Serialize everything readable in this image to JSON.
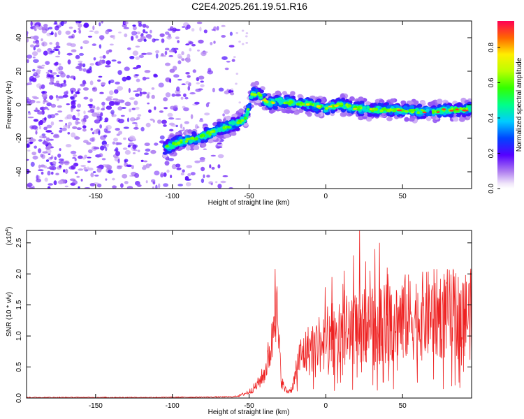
{
  "title": "C2E4.2025.261.19.51.R16",
  "chart_data": [
    {
      "type": "heatmap",
      "name": "spectrogram",
      "xlabel": "Height of straight line (km)",
      "ylabel": "Frequency (Hz)",
      "xlim": [
        -195,
        95
      ],
      "ylim": [
        -50,
        50
      ],
      "xticks": [
        -150,
        -100,
        -50,
        0,
        50
      ],
      "yticks": [
        -40,
        -20,
        0,
        20,
        40
      ],
      "colorbar": {
        "label": "Normalized spectral amplitude",
        "range": [
          0,
          0.95
        ],
        "ticks": [
          "0.0",
          "0.2",
          "0.4",
          "0.6",
          "0.8"
        ]
      },
      "ridge": {
        "x": [
          -105,
          -95,
          -85,
          -75,
          -65,
          -58,
          -52,
          -48,
          -45,
          -42,
          -38,
          -30,
          -20,
          -10,
          0,
          10,
          20,
          30,
          40,
          50,
          60,
          70,
          80,
          90,
          95
        ],
        "y": [
          -26,
          -22,
          -20,
          -17,
          -13,
          -11,
          -8,
          6,
          7,
          5,
          1,
          2,
          1,
          0,
          -2,
          0,
          -2,
          -3,
          -3,
          -3,
          -4,
          -4,
          -3,
          -3,
          -2
        ]
      }
    },
    {
      "type": "line",
      "name": "snr",
      "xlabel": "Height of straight line (km)",
      "ylabel": "SNR (10 * v/v)",
      "multiplier": "(x10",
      "multiplier_exp": "4",
      "xlim": [
        -195,
        95
      ],
      "ylim": [
        0,
        2.7
      ],
      "xticks": [
        -150,
        -100,
        -50,
        0,
        50
      ],
      "yticks": [
        "0.0",
        "0.5",
        "1.0",
        "1.5",
        "2.0",
        "2.5"
      ],
      "color": "#ee2222",
      "envelope": {
        "x": [
          -195,
          -120,
          -80,
          -60,
          -55,
          -50,
          -45,
          -40,
          -35,
          -33,
          -31,
          -29,
          -27,
          -25,
          -22,
          -20,
          -18,
          -15,
          -10,
          -5,
          0,
          5,
          10,
          15,
          20,
          22,
          25,
          30,
          35,
          40,
          45,
          50,
          60,
          70,
          80,
          90,
          95
        ],
        "y": [
          0.01,
          0.01,
          0.015,
          0.02,
          0.05,
          0.1,
          0.2,
          0.4,
          0.9,
          1.8,
          1.0,
          0.3,
          0.15,
          0.1,
          0.15,
          0.35,
          0.6,
          0.7,
          0.8,
          0.9,
          0.95,
          1.0,
          1.05,
          1.1,
          1.1,
          1.15,
          1.15,
          1.15,
          1.2,
          1.2,
          1.25,
          1.3,
          1.3,
          1.35,
          1.35,
          1.35,
          1.35
        ]
      },
      "peaks": [
        {
          "x": -33,
          "y": 2.08
        },
        {
          "x": 4,
          "y": 1.95
        },
        {
          "x": 12,
          "y": 2.05
        },
        {
          "x": 18,
          "y": 2.3
        },
        {
          "x": 22,
          "y": 2.72
        },
        {
          "x": 26,
          "y": 2.2
        },
        {
          "x": 32,
          "y": 2.4
        },
        {
          "x": 35,
          "y": 2.5
        },
        {
          "x": 40,
          "y": 2.1
        },
        {
          "x": 50,
          "y": 1.75
        },
        {
          "x": 90,
          "y": 1.85
        }
      ]
    }
  ]
}
